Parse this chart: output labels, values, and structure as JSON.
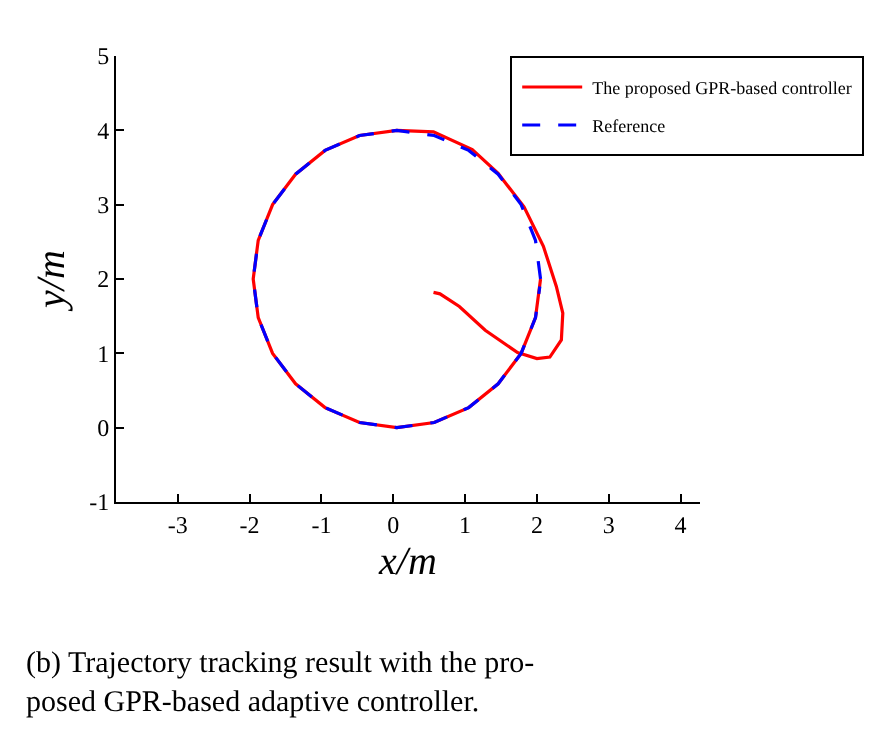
{
  "chart_data": {
    "type": "line",
    "xlabel": "x/m",
    "ylabel": "y/m",
    "xlim": [
      -3.86,
      4.27
    ],
    "xticks": [
      -3,
      -2,
      -1,
      0,
      1,
      2,
      3,
      4
    ],
    "ylim": [
      -1,
      5
    ],
    "yticks": [
      -1,
      0,
      1,
      2,
      3,
      4,
      5
    ],
    "grid": false,
    "legend": "top right",
    "marker": "none",
    "annotations": [
      "(b) Trajectory tracking result with the pro-\nposed GPR-based adaptive controller."
    ],
    "series": [
      {
        "name": "The proposed GPR-based controller",
        "color": "#ff0000",
        "line_style": "solid",
        "x": [
          0.56,
          0.65,
          0.92,
          1.28,
          1.73,
          2.0,
          2.18,
          2.34,
          2.36,
          2.27,
          2.09,
          1.82,
          1.46,
          1.1,
          0.56,
          0.05,
          -0.47,
          -0.95,
          -1.36,
          -1.68,
          -1.88,
          -1.95,
          -1.88,
          -1.68,
          -1.36,
          -0.95,
          -0.47,
          0.05,
          0.57,
          1.05,
          1.46,
          1.78,
          1.98,
          2.05
        ],
        "values": [
          1.82,
          1.8,
          1.63,
          1.31,
          1.01,
          0.93,
          0.95,
          1.18,
          1.54,
          1.9,
          2.44,
          2.97,
          3.42,
          3.74,
          3.98,
          4.0,
          3.93,
          3.73,
          3.41,
          3.0,
          2.52,
          2.0,
          1.48,
          1.0,
          0.59,
          0.27,
          0.07,
          0.0,
          0.07,
          0.27,
          0.59,
          1.0,
          1.48,
          2.0
        ]
      },
      {
        "name": "Reference",
        "color": "#0000ff",
        "line_style": "dashed",
        "x": [
          2.05,
          1.98,
          1.78,
          1.46,
          1.05,
          0.57,
          0.05,
          -0.47,
          -0.95,
          -1.36,
          -1.68,
          -1.88,
          -1.95,
          -1.88,
          -1.68,
          -1.36,
          -0.95,
          -0.47,
          0.05,
          0.57,
          1.05,
          1.46,
          1.78,
          1.98,
          2.04
        ],
        "values": [
          2.0,
          2.52,
          3.0,
          3.41,
          3.73,
          3.93,
          4.0,
          3.93,
          3.73,
          3.41,
          3.0,
          2.52,
          2.0,
          1.48,
          1.0,
          0.59,
          0.27,
          0.07,
          0.0,
          0.07,
          0.27,
          0.59,
          1.0,
          1.48,
          1.9
        ]
      }
    ]
  }
}
